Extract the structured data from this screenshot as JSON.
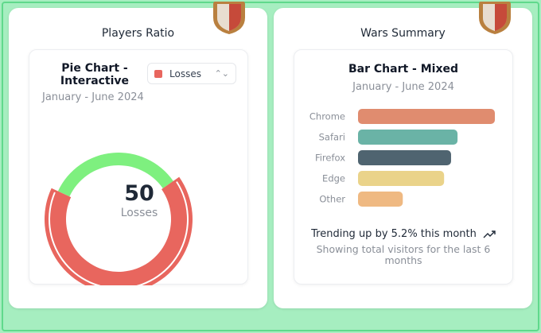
{
  "players": {
    "card_title": "Players Ratio",
    "chart_title": "Pie Chart - Interactive",
    "subtitle": "January - June 2024",
    "select_value": "Losses",
    "center_value": "50",
    "center_label": "Losses"
  },
  "wars": {
    "card_title": "Wars Summary",
    "chart_title": "Bar Chart - Mixed",
    "subtitle": "January - June 2024",
    "trend": "Trending up by 5.2% this month",
    "footnote": "Showing total visitors for the last 6 months"
  },
  "colors": {
    "accent_green": "#7ef07f",
    "losses_red": "#e8665e",
    "background": "#a6eec0"
  },
  "chart_data": [
    {
      "type": "pie",
      "title": "Pie Chart - Interactive",
      "categories": [
        "Losses",
        "Other"
      ],
      "values": [
        50,
        25
      ],
      "colors": [
        "#e8665e",
        "#7ef07f"
      ]
    },
    {
      "type": "bar",
      "title": "Bar Chart - Mixed",
      "categories": [
        "Chrome",
        "Safari",
        "Firefox",
        "Edge",
        "Other"
      ],
      "values": [
        275,
        200,
        187,
        173,
        90
      ],
      "colors": [
        "#e08c6f",
        "#6ab3a6",
        "#4f6470",
        "#ead38a",
        "#efb982"
      ]
    }
  ]
}
